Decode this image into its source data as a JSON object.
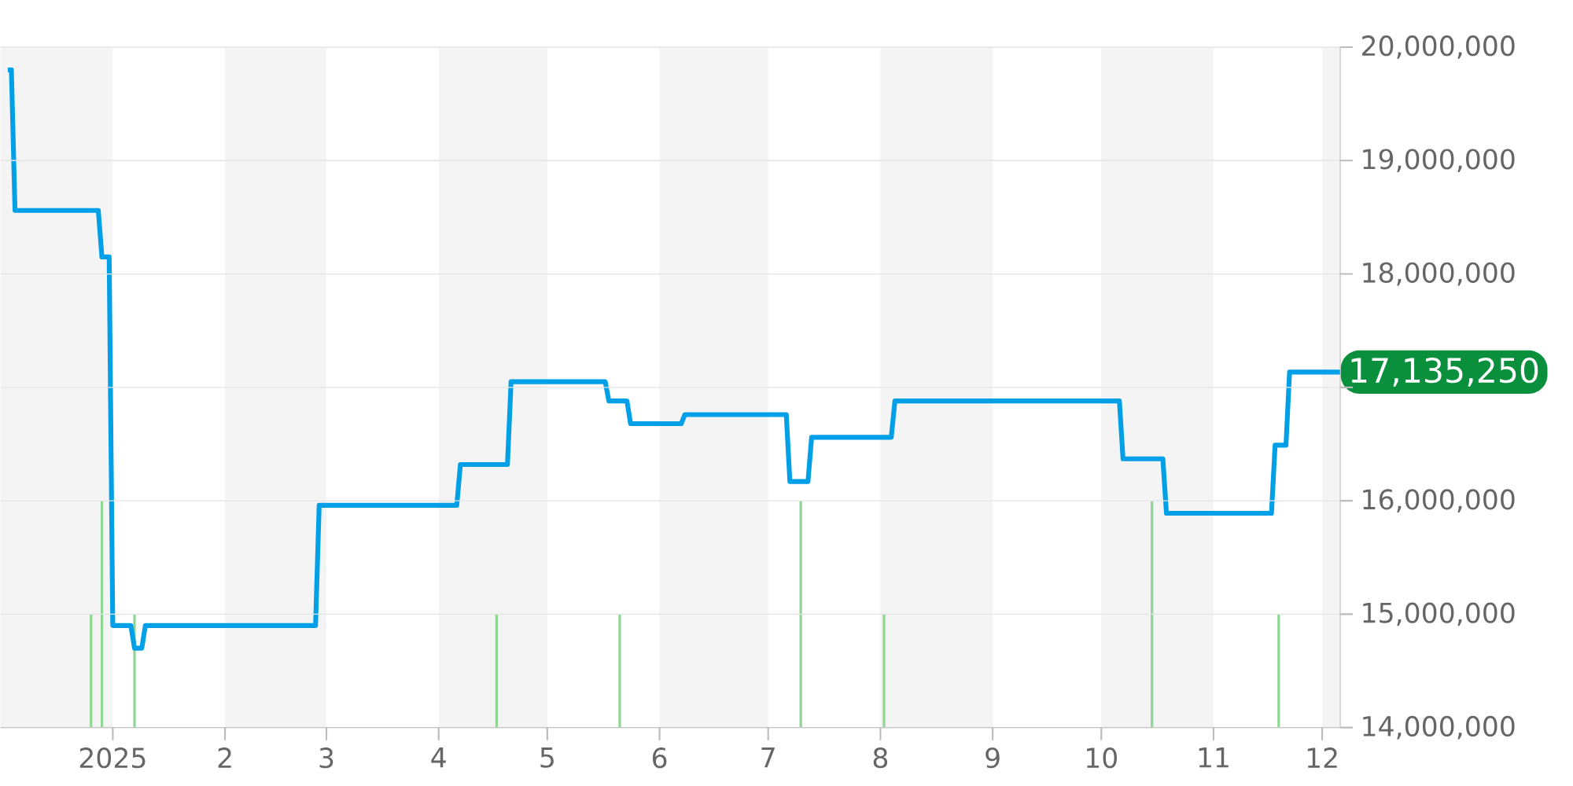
{
  "chart_data": {
    "type": "line",
    "xlim": [
      "2024-12-01",
      "2025-12-06"
    ],
    "xticks": [
      {
        "value": "2025-01-01",
        "label": "2025"
      },
      {
        "value": "2025-02-01",
        "label": "2"
      },
      {
        "value": "2025-03-01",
        "label": "3"
      },
      {
        "value": "2025-04-01",
        "label": "4"
      },
      {
        "value": "2025-05-01",
        "label": "5"
      },
      {
        "value": "2025-06-01",
        "label": "6"
      },
      {
        "value": "2025-07-01",
        "label": "7"
      },
      {
        "value": "2025-08-01",
        "label": "8"
      },
      {
        "value": "2025-09-01",
        "label": "9"
      },
      {
        "value": "2025-10-01",
        "label": "10"
      },
      {
        "value": "2025-11-01",
        "label": "11"
      },
      {
        "value": "2025-12-01",
        "label": "12"
      }
    ],
    "ylim": [
      14000000,
      20000000
    ],
    "yticks": [
      {
        "value": 14000000,
        "label": "14,000,000"
      },
      {
        "value": 15000000,
        "label": "15,000,000"
      },
      {
        "value": 16000000,
        "label": "16,000,000"
      },
      {
        "value": 17000000,
        "label": null
      },
      {
        "value": 18000000,
        "label": "18,000,000"
      },
      {
        "value": 19000000,
        "label": "19,000,000"
      },
      {
        "value": 20000000,
        "label": "20,000,000"
      }
    ],
    "grid": "y",
    "bands": [
      {
        "axis": "x",
        "from": "2024-12-01",
        "to": "2025-01-01",
        "label": null,
        "color": "#f4f4f4"
      },
      {
        "axis": "x",
        "from": "2025-02-01",
        "to": "2025-03-01",
        "label": null,
        "color": "#f4f4f4"
      },
      {
        "axis": "x",
        "from": "2025-04-01",
        "to": "2025-05-01",
        "label": null,
        "color": "#f4f4f4"
      },
      {
        "axis": "x",
        "from": "2025-06-01",
        "to": "2025-07-01",
        "label": null,
        "color": "#f4f4f4"
      },
      {
        "axis": "x",
        "from": "2025-08-01",
        "to": "2025-09-01",
        "label": null,
        "color": "#f4f4f4"
      },
      {
        "axis": "x",
        "from": "2025-10-01",
        "to": "2025-11-01",
        "label": null,
        "color": "#f4f4f4"
      },
      {
        "axis": "x",
        "from": "2025-12-01",
        "to": "2025-12-06",
        "label": null,
        "color": "#f4f4f4"
      }
    ],
    "series": [
      {
        "type": "bar",
        "color": "#8fd694",
        "x": [
          "2024-12-26",
          "2024-12-29",
          "2025-01-07",
          "2025-04-17",
          "2025-05-21",
          "2025-07-10",
          "2025-08-02",
          "2025-10-15",
          "2025-11-19"
        ],
        "values": [
          15000000,
          16000000,
          15000000,
          15000000,
          15000000,
          16000000,
          15000000,
          16000000,
          15000000
        ]
      },
      {
        "color": "#00a0e9",
        "x": [
          "2024-12-03",
          "2024-12-04",
          "2024-12-05",
          "2024-12-28",
          "2024-12-29",
          "2024-12-31",
          "2025-01-01",
          "2025-01-06",
          "2025-01-07",
          "2025-01-09",
          "2025-01-10",
          "2025-02-26",
          "2025-02-27",
          "2025-04-06",
          "2025-04-07",
          "2025-04-20",
          "2025-04-21",
          "2025-05-17",
          "2025-05-18",
          "2025-05-23",
          "2025-05-24",
          "2025-06-07",
          "2025-06-08",
          "2025-07-06",
          "2025-07-07",
          "2025-07-12",
          "2025-07-13",
          "2025-08-04",
          "2025-08-05",
          "2025-10-06",
          "2025-10-07",
          "2025-10-18",
          "2025-10-19",
          "2025-11-17",
          "2025-11-18",
          "2025-11-21",
          "2025-11-22",
          "2025-12-06"
        ],
        "values": [
          19800000,
          19800000,
          18560000,
          18560000,
          18150000,
          18150000,
          14900000,
          14900000,
          14700000,
          14700000,
          14900000,
          14900000,
          15960000,
          15960000,
          16320000,
          16320000,
          17050000,
          17050000,
          16880000,
          16880000,
          16680000,
          16680000,
          16760000,
          16760000,
          16170000,
          16170000,
          16560000,
          16560000,
          16880000,
          16880000,
          16370000,
          16370000,
          15890000,
          15890000,
          16490000,
          16490000,
          17135250,
          17135250
        ]
      }
    ],
    "annotations": [
      {
        "text": "17,135,250",
        "x": "2025-12-06",
        "y": 17135250
      }
    ]
  }
}
